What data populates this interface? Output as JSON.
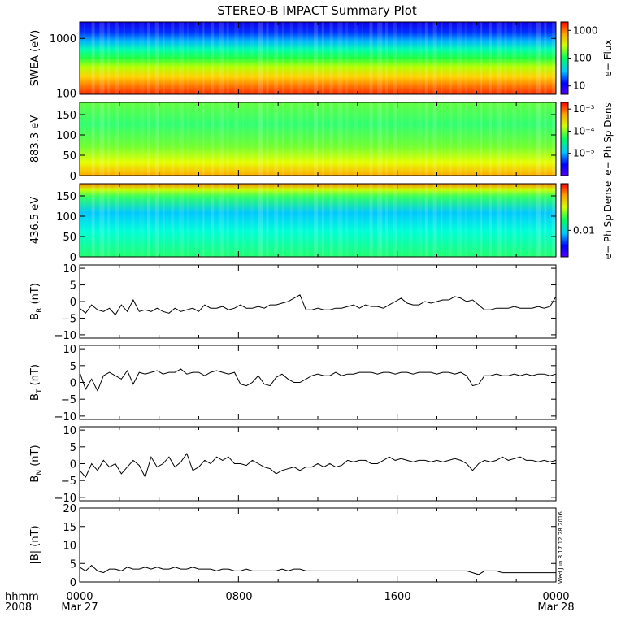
{
  "title": "STEREO-B IMPACT Summary Plot",
  "timestamp_note": "Wed Jun 8 17:12:28 2016",
  "time_axis": {
    "corner_label": [
      "hhmm",
      "2008"
    ],
    "ticks": [
      {
        "t": 0,
        "label": "0000",
        "sub": "Mar 27"
      },
      {
        "t": 8,
        "label": "0800",
        "sub": ""
      },
      {
        "t": 16,
        "label": "1600",
        "sub": ""
      },
      {
        "t": 24,
        "label": "0000",
        "sub": "Mar 28"
      }
    ],
    "range_hours": [
      0,
      24
    ]
  },
  "chart_data": [
    {
      "type": "heatmap",
      "id": "swea",
      "ylabel": "SWEA (eV)",
      "ylog": true,
      "ylim": [
        95,
        2000
      ],
      "yticks": [
        {
          "v": 1000,
          "label": "1000"
        },
        {
          "v": 100,
          "label": "100"
        }
      ],
      "colorbar": {
        "label": "e− Flux",
        "log": true,
        "range": [
          5,
          2000
        ],
        "ticks": [
          {
            "v": 1000,
            "label": "1000"
          },
          {
            "v": 100,
            "label": "100"
          },
          {
            "v": 10,
            "label": "10"
          }
        ]
      },
      "description_values": "electron flux spectrogram: high (red) below ~150 eV, falling to low (blue) above ~1500 eV; dip near 10:40"
    },
    {
      "type": "heatmap",
      "id": "pad883",
      "ylabel": "883.3 eV",
      "ylim": [
        0,
        180
      ],
      "yticks": [
        {
          "v": 150,
          "label": "150"
        },
        {
          "v": 100,
          "label": "100"
        },
        {
          "v": 50,
          "label": "50"
        },
        {
          "v": 0,
          "label": "0"
        }
      ],
      "colorbar": {
        "label": "e− Ph Sp Dens",
        "log": true,
        "range": [
          1e-06,
          0.002
        ],
        "ticks": [
          {
            "v": 0.001,
            "label": "10⁻³"
          },
          {
            "v": 0.0001,
            "label": "10⁻⁴"
          },
          {
            "v": 1e-05,
            "label": "10⁻⁵"
          }
        ]
      }
    },
    {
      "type": "heatmap",
      "id": "pad436",
      "ylabel": "436.5 eV",
      "ylim": [
        0,
        180
      ],
      "yticks": [
        {
          "v": 150,
          "label": "150"
        },
        {
          "v": 100,
          "label": "100"
        },
        {
          "v": 50,
          "label": "50"
        },
        {
          "v": 0,
          "label": "0"
        }
      ],
      "colorbar": {
        "label": "e− Ph Sp Dense",
        "log": true,
        "range": [
          0.004,
          0.05
        ],
        "ticks": [
          {
            "v": 0.01,
            "label": "0.01"
          }
        ]
      }
    },
    {
      "type": "line",
      "id": "br",
      "ylabel": "B",
      "ylabel_sub": "R",
      "ylabel_unit": " (nT)",
      "ylim": [
        -11,
        11
      ],
      "yticks": [
        {
          "v": 10,
          "label": "10"
        },
        {
          "v": 5,
          "label": "5"
        },
        {
          "v": 0,
          "label": "0"
        },
        {
          "v": -5,
          "label": "−5"
        },
        {
          "v": -10,
          "label": "−10"
        }
      ],
      "x": [
        0,
        0.3,
        0.6,
        0.9,
        1.2,
        1.5,
        1.8,
        2.1,
        2.4,
        2.7,
        3.0,
        3.3,
        3.6,
        3.9,
        4.2,
        4.5,
        4.8,
        5.1,
        5.4,
        5.7,
        6.0,
        6.3,
        6.6,
        6.9,
        7.2,
        7.5,
        7.8,
        8.1,
        8.4,
        8.7,
        9.0,
        9.3,
        9.6,
        9.9,
        10.2,
        10.5,
        10.8,
        11.1,
        11.4,
        11.7,
        12.0,
        12.3,
        12.6,
        12.9,
        13.2,
        13.5,
        13.8,
        14.1,
        14.4,
        14.7,
        15.0,
        15.3,
        15.6,
        15.9,
        16.2,
        16.5,
        16.8,
        17.1,
        17.4,
        17.7,
        18.0,
        18.3,
        18.6,
        18.9,
        19.2,
        19.5,
        19.8,
        20.1,
        20.4,
        20.7,
        21.0,
        21.3,
        21.6,
        21.9,
        22.2,
        22.5,
        22.8,
        23.1,
        23.4,
        23.7,
        24.0
      ],
      "values": [
        -2,
        -3.5,
        -1,
        -2.5,
        -3,
        -2,
        -4,
        -1,
        -3,
        0.5,
        -3,
        -2.5,
        -3,
        -2,
        -3,
        -3.5,
        -2,
        -3,
        -2.5,
        -2,
        -3,
        -1,
        -2,
        -2,
        -1.5,
        -2.5,
        -2,
        -1,
        -2,
        -2,
        -1.5,
        -2,
        -1,
        -1,
        -0.5,
        0,
        1,
        2,
        -2.5,
        -2.5,
        -2,
        -2.5,
        -2.5,
        -2,
        -2,
        -1.5,
        -1,
        -2,
        -1,
        -1.5,
        -1.5,
        -2,
        -1,
        0,
        1,
        -0.5,
        -1,
        -1,
        0,
        -0.5,
        0,
        0.5,
        0.5,
        1.5,
        1,
        0,
        0.5,
        -1,
        -2.5,
        -2.5,
        -2,
        -2,
        -2,
        -1.5,
        -2,
        -2,
        -2,
        -1.5,
        -2,
        -1.5,
        1.5
      ]
    },
    {
      "type": "line",
      "id": "bt",
      "ylabel": "B",
      "ylabel_sub": "T",
      "ylabel_unit": " (nT)",
      "ylim": [
        -11,
        11
      ],
      "yticks": [
        {
          "v": 10,
          "label": "10"
        },
        {
          "v": 5,
          "label": "5"
        },
        {
          "v": 0,
          "label": "0"
        },
        {
          "v": -5,
          "label": "−5"
        },
        {
          "v": -10,
          "label": "−10"
        }
      ],
      "x": [
        0,
        0.3,
        0.6,
        0.9,
        1.2,
        1.5,
        1.8,
        2.1,
        2.4,
        2.7,
        3.0,
        3.3,
        3.6,
        3.9,
        4.2,
        4.5,
        4.8,
        5.1,
        5.4,
        5.7,
        6.0,
        6.3,
        6.6,
        6.9,
        7.2,
        7.5,
        7.8,
        8.1,
        8.4,
        8.7,
        9.0,
        9.3,
        9.6,
        9.9,
        10.2,
        10.5,
        10.8,
        11.1,
        11.4,
        11.7,
        12.0,
        12.3,
        12.6,
        12.9,
        13.2,
        13.5,
        13.8,
        14.1,
        14.4,
        14.7,
        15.0,
        15.3,
        15.6,
        15.9,
        16.2,
        16.5,
        16.8,
        17.1,
        17.4,
        17.7,
        18.0,
        18.3,
        18.6,
        18.9,
        19.2,
        19.5,
        19.8,
        20.1,
        20.4,
        20.7,
        21.0,
        21.3,
        21.6,
        21.9,
        22.2,
        22.5,
        22.8,
        23.1,
        23.4,
        23.7,
        24.0
      ],
      "values": [
        3,
        -2,
        1,
        -2.5,
        2,
        3,
        2,
        1,
        3.5,
        -0.5,
        3,
        2.5,
        3,
        3.5,
        2.5,
        3,
        3,
        4,
        2.5,
        3,
        3,
        2,
        3,
        3.5,
        3,
        2.5,
        3,
        -0.5,
        -1,
        0,
        2,
        -0.5,
        -1,
        1.5,
        2.5,
        1,
        0,
        0,
        1,
        2,
        2.5,
        2,
        2,
        3,
        2,
        2.5,
        2.5,
        3,
        3,
        3,
        2.5,
        3,
        3,
        2.5,
        3,
        3,
        2.5,
        3,
        3,
        3,
        2.5,
        3,
        3,
        2.5,
        3,
        2,
        -1,
        -0.5,
        2,
        2,
        2.5,
        2,
        2,
        2.5,
        2,
        2.5,
        2,
        2.5,
        2.5,
        2,
        2.5
      ]
    },
    {
      "type": "line",
      "id": "bn",
      "ylabel": "B",
      "ylabel_sub": "N",
      "ylabel_unit": " (nT)",
      "ylim": [
        -11,
        11
      ],
      "yticks": [
        {
          "v": 10,
          "label": "10"
        },
        {
          "v": 5,
          "label": "5"
        },
        {
          "v": 0,
          "label": "0"
        },
        {
          "v": -5,
          "label": "−5"
        },
        {
          "v": -10,
          "label": "−10"
        }
      ],
      "x": [
        0,
        0.3,
        0.6,
        0.9,
        1.2,
        1.5,
        1.8,
        2.1,
        2.4,
        2.7,
        3.0,
        3.3,
        3.6,
        3.9,
        4.2,
        4.5,
        4.8,
        5.1,
        5.4,
        5.7,
        6.0,
        6.3,
        6.6,
        6.9,
        7.2,
        7.5,
        7.8,
        8.1,
        8.4,
        8.7,
        9.0,
        9.3,
        9.6,
        9.9,
        10.2,
        10.5,
        10.8,
        11.1,
        11.4,
        11.7,
        12.0,
        12.3,
        12.6,
        12.9,
        13.2,
        13.5,
        13.8,
        14.1,
        14.4,
        14.7,
        15.0,
        15.3,
        15.6,
        15.9,
        16.2,
        16.5,
        16.8,
        17.1,
        17.4,
        17.7,
        18.0,
        18.3,
        18.6,
        18.9,
        19.2,
        19.5,
        19.8,
        20.1,
        20.4,
        20.7,
        21.0,
        21.3,
        21.6,
        21.9,
        22.2,
        22.5,
        22.8,
        23.1,
        23.4,
        23.7,
        24.0
      ],
      "values": [
        -2,
        -4,
        0,
        -2,
        1,
        -1,
        0,
        -3,
        -1,
        1,
        -0.5,
        -4,
        2,
        -1,
        0,
        2,
        -1,
        0.5,
        3,
        -2,
        -1,
        1,
        0,
        2,
        1,
        2,
        0,
        0,
        -0.5,
        1,
        0,
        -1,
        -1.5,
        -3,
        -2,
        -1.5,
        -1,
        -2,
        -1,
        -1,
        0,
        -1,
        0,
        -1,
        -0.5,
        1,
        0.5,
        1,
        1,
        0,
        0,
        1,
        2,
        1,
        1.5,
        1,
        0.5,
        1,
        1,
        0.5,
        1,
        0.5,
        1,
        1.5,
        1,
        0,
        -2,
        0,
        1,
        0.5,
        1,
        2,
        1,
        1.5,
        2,
        1,
        1,
        0.5,
        1,
        0.5,
        1
      ]
    },
    {
      "type": "line",
      "id": "bmag",
      "ylabel": "|B| (nT)",
      "ylim": [
        0,
        20
      ],
      "yticks": [
        {
          "v": 20,
          "label": "20"
        },
        {
          "v": 15,
          "label": "15"
        },
        {
          "v": 10,
          "label": "10"
        },
        {
          "v": 5,
          "label": "5"
        },
        {
          "v": 0,
          "label": "0"
        }
      ],
      "x": [
        0,
        0.3,
        0.6,
        0.9,
        1.2,
        1.5,
        1.8,
        2.1,
        2.4,
        2.7,
        3.0,
        3.3,
        3.6,
        3.9,
        4.2,
        4.5,
        4.8,
        5.1,
        5.4,
        5.7,
        6.0,
        6.3,
        6.6,
        6.9,
        7.2,
        7.5,
        7.8,
        8.1,
        8.4,
        8.7,
        9.0,
        9.3,
        9.6,
        9.9,
        10.2,
        10.5,
        10.8,
        11.1,
        11.4,
        11.7,
        12.0,
        12.3,
        12.6,
        12.9,
        13.2,
        13.5,
        13.8,
        14.1,
        14.4,
        14.7,
        15.0,
        15.3,
        15.6,
        15.9,
        16.2,
        16.5,
        16.8,
        17.1,
        17.4,
        17.7,
        18.0,
        18.3,
        18.6,
        18.9,
        19.2,
        19.5,
        19.8,
        20.1,
        20.4,
        20.7,
        21.0,
        21.3,
        21.6,
        21.9,
        22.2,
        22.5,
        22.8,
        23.1,
        23.4,
        23.7,
        24.0
      ],
      "values": [
        4,
        3,
        4.5,
        3,
        2.5,
        3.5,
        3.5,
        3,
        4,
        3.5,
        3.5,
        4,
        3.5,
        4,
        3.5,
        3.5,
        4,
        3.5,
        3.5,
        4,
        3.5,
        3.5,
        3.5,
        3,
        3.5,
        3.5,
        3,
        3,
        3.5,
        3,
        3,
        3,
        3,
        3,
        3.5,
        3,
        3.5,
        3.5,
        3,
        3,
        3,
        3,
        3,
        3,
        3,
        3,
        3,
        3,
        3,
        3,
        3,
        3,
        3,
        3,
        3,
        3,
        3,
        3,
        3,
        3,
        3,
        3,
        3,
        3,
        3,
        3,
        2.5,
        2,
        3,
        3,
        3,
        2.5,
        2.5,
        2.5,
        2.5,
        2.5,
        2.5,
        2.5,
        2.5,
        2.5,
        2.5
      ]
    }
  ]
}
